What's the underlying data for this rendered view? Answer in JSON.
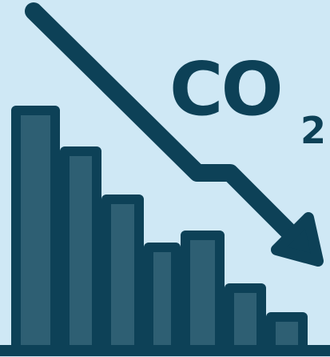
{
  "co2": {
    "main": "CO",
    "subscript": "2"
  },
  "colors": {
    "background": "#cfe8f5",
    "outline": "#0d4157",
    "bar_fill": "#2e5f73"
  },
  "icons": [
    "decreasing-bar-chart-icon",
    "down-right-arrow-icon"
  ],
  "bars": {
    "count": 7,
    "relative_levels": [
      1.0,
      0.83,
      0.63,
      0.43,
      0.48,
      0.26,
      0.14
    ]
  }
}
